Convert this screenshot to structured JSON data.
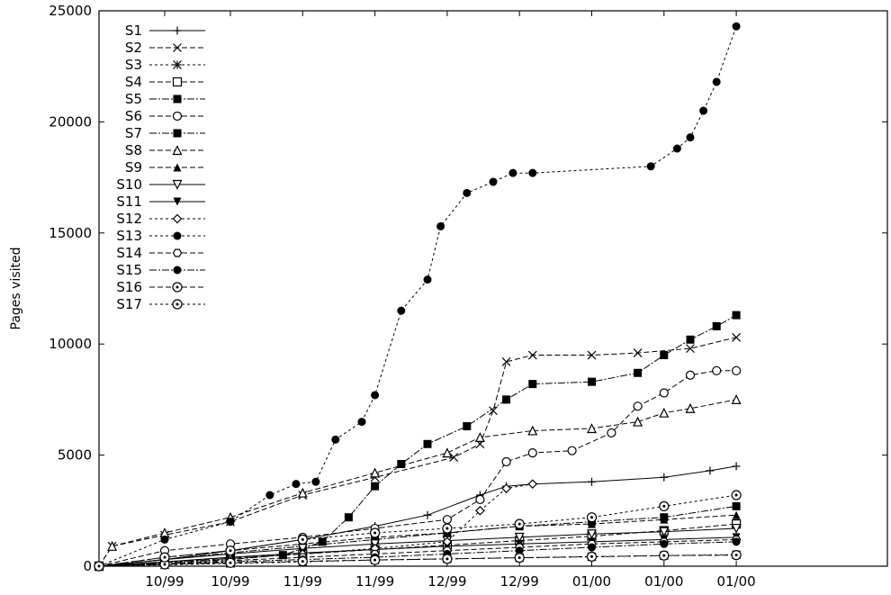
{
  "chart_data": {
    "type": "line",
    "title": "",
    "xlabel": "",
    "ylabel": "Pages visited",
    "ylim": [
      0,
      25000
    ],
    "yticks": [
      0,
      5000,
      10000,
      15000,
      20000,
      25000
    ],
    "xlim": [
      0,
      120
    ],
    "xticks": [
      {
        "x": 10,
        "label": "10/99"
      },
      {
        "x": 20,
        "label": "10/99"
      },
      {
        "x": 31,
        "label": "11/99"
      },
      {
        "x": 42,
        "label": "11/99"
      },
      {
        "x": 53,
        "label": "12/99"
      },
      {
        "x": 64,
        "label": "12/99"
      },
      {
        "x": 75,
        "label": "01/00"
      },
      {
        "x": 86,
        "label": "01/00"
      },
      {
        "x": 97,
        "label": "01/00"
      }
    ],
    "grid": false,
    "legend_position": "top-left",
    "series": [
      {
        "name": "S1",
        "marker": "plus",
        "dash": "",
        "points": [
          [
            0,
            0
          ],
          [
            10,
            300
          ],
          [
            20,
            700
          ],
          [
            31,
            1200
          ],
          [
            42,
            1800
          ],
          [
            50,
            2300
          ],
          [
            58,
            3200
          ],
          [
            62,
            3600
          ],
          [
            66,
            3700
          ],
          [
            75,
            3800
          ],
          [
            86,
            4000
          ],
          [
            93,
            4300
          ],
          [
            97,
            4500
          ]
        ]
      },
      {
        "name": "S2",
        "marker": "cross",
        "dash": "6,3",
        "points": [
          [
            0,
            0
          ],
          [
            2,
            900
          ],
          [
            10,
            1400
          ],
          [
            20,
            2000
          ],
          [
            31,
            3200
          ],
          [
            42,
            4000
          ],
          [
            54,
            4900
          ],
          [
            58,
            5500
          ],
          [
            60,
            7000
          ],
          [
            62,
            9200
          ],
          [
            66,
            9500
          ],
          [
            75,
            9500
          ],
          [
            82,
            9600
          ],
          [
            90,
            9800
          ],
          [
            97,
            10300
          ]
        ]
      },
      {
        "name": "S3",
        "marker": "asterisk",
        "dash": "3,3",
        "points": [
          [
            0,
            0
          ],
          [
            10,
            60
          ],
          [
            20,
            120
          ],
          [
            31,
            200
          ],
          [
            42,
            280
          ],
          [
            53,
            330
          ],
          [
            64,
            380
          ],
          [
            75,
            420
          ],
          [
            86,
            480
          ],
          [
            97,
            520
          ]
        ]
      },
      {
        "name": "S4",
        "marker": "square-open",
        "dash": "6,3",
        "points": [
          [
            0,
            0
          ],
          [
            10,
            200
          ],
          [
            20,
            350
          ],
          [
            31,
            550
          ],
          [
            42,
            750
          ],
          [
            53,
            950
          ],
          [
            64,
            1150
          ],
          [
            75,
            1350
          ],
          [
            86,
            1600
          ],
          [
            97,
            1900
          ]
        ]
      },
      {
        "name": "S5",
        "marker": "square-filled",
        "dash": "8,2,2,2",
        "points": [
          [
            0,
            0
          ],
          [
            20,
            300
          ],
          [
            28,
            500
          ],
          [
            34,
            1100
          ],
          [
            38,
            2200
          ],
          [
            42,
            3600
          ],
          [
            46,
            4600
          ],
          [
            50,
            5500
          ],
          [
            56,
            6300
          ],
          [
            62,
            7500
          ],
          [
            66,
            8200
          ],
          [
            75,
            8300
          ],
          [
            82,
            8700
          ],
          [
            86,
            9500
          ],
          [
            90,
            10200
          ],
          [
            94,
            10800
          ],
          [
            97,
            11300
          ]
        ]
      },
      {
        "name": "S6",
        "marker": "circle-open",
        "dash": "6,3",
        "points": [
          [
            0,
            0
          ],
          [
            10,
            700
          ],
          [
            20,
            1000
          ],
          [
            31,
            1300
          ],
          [
            42,
            1700
          ],
          [
            53,
            2100
          ],
          [
            58,
            3000
          ],
          [
            62,
            4700
          ],
          [
            66,
            5100
          ],
          [
            72,
            5200
          ],
          [
            78,
            6000
          ],
          [
            82,
            7200
          ],
          [
            86,
            7800
          ],
          [
            90,
            8600
          ],
          [
            94,
            8800
          ],
          [
            97,
            8800
          ]
        ]
      },
      {
        "name": "S7",
        "marker": "square-filled",
        "dash": "8,2,2,2",
        "points": [
          [
            0,
            0
          ],
          [
            10,
            300
          ],
          [
            20,
            600
          ],
          [
            31,
            900
          ],
          [
            42,
            1200
          ],
          [
            53,
            1500
          ],
          [
            64,
            1800
          ],
          [
            75,
            2000
          ],
          [
            86,
            2200
          ],
          [
            97,
            2700
          ]
        ]
      },
      {
        "name": "S8",
        "marker": "triangle-open",
        "dash": "6,3",
        "points": [
          [
            0,
            0
          ],
          [
            2,
            900
          ],
          [
            10,
            1500
          ],
          [
            20,
            2200
          ],
          [
            31,
            3300
          ],
          [
            42,
            4200
          ],
          [
            53,
            5100
          ],
          [
            58,
            5800
          ],
          [
            66,
            6100
          ],
          [
            75,
            6200
          ],
          [
            82,
            6500
          ],
          [
            86,
            6900
          ],
          [
            90,
            7100
          ],
          [
            97,
            7500
          ]
        ]
      },
      {
        "name": "S9",
        "marker": "triangle-filled",
        "dash": "6,3",
        "points": [
          [
            0,
            0
          ],
          [
            10,
            400
          ],
          [
            20,
            700
          ],
          [
            31,
            1000
          ],
          [
            42,
            1300
          ],
          [
            53,
            1500
          ],
          [
            64,
            1800
          ],
          [
            75,
            1900
          ],
          [
            86,
            2100
          ],
          [
            97,
            2300
          ]
        ]
      },
      {
        "name": "S10",
        "marker": "triangle-down-open",
        "dash": "",
        "points": [
          [
            0,
            0
          ],
          [
            10,
            300
          ],
          [
            20,
            550
          ],
          [
            31,
            800
          ],
          [
            42,
            1000
          ],
          [
            53,
            1150
          ],
          [
            64,
            1300
          ],
          [
            75,
            1450
          ],
          [
            86,
            1550
          ],
          [
            97,
            1700
          ]
        ]
      },
      {
        "name": "S11",
        "marker": "triangle-down-filled",
        "dash": "",
        "points": [
          [
            0,
            0
          ],
          [
            10,
            200
          ],
          [
            20,
            400
          ],
          [
            31,
            600
          ],
          [
            42,
            750
          ],
          [
            53,
            900
          ],
          [
            64,
            1000
          ],
          [
            75,
            1100
          ],
          [
            86,
            1200
          ],
          [
            97,
            1300
          ]
        ]
      },
      {
        "name": "S12",
        "marker": "diamond-open",
        "dash": "3,3",
        "points": [
          [
            0,
            0
          ],
          [
            10,
            150
          ],
          [
            20,
            350
          ],
          [
            31,
            550
          ],
          [
            42,
            800
          ],
          [
            53,
            1100
          ],
          [
            58,
            2500
          ],
          [
            62,
            3500
          ],
          [
            66,
            3700
          ]
        ]
      },
      {
        "name": "S13",
        "marker": "circle-filled",
        "dash": "3,3",
        "points": [
          [
            0,
            0
          ],
          [
            10,
            1200
          ],
          [
            20,
            2000
          ],
          [
            26,
            3200
          ],
          [
            30,
            3700
          ],
          [
            33,
            3800
          ],
          [
            36,
            5700
          ],
          [
            40,
            6500
          ],
          [
            42,
            7700
          ],
          [
            46,
            11500
          ],
          [
            50,
            12900
          ],
          [
            52,
            15300
          ],
          [
            56,
            16800
          ],
          [
            60,
            17300
          ],
          [
            63,
            17700
          ],
          [
            66,
            17700
          ],
          [
            84,
            18000
          ],
          [
            88,
            18800
          ],
          [
            90,
            19300
          ],
          [
            92,
            20500
          ],
          [
            94,
            21800
          ],
          [
            97,
            24300
          ]
        ]
      },
      {
        "name": "S14",
        "marker": "hexagon-open",
        "dash": "6,3",
        "points": [
          [
            0,
            0
          ],
          [
            10,
            100
          ],
          [
            20,
            250
          ],
          [
            31,
            400
          ],
          [
            42,
            550
          ],
          [
            53,
            700
          ],
          [
            64,
            850
          ],
          [
            75,
            1000
          ],
          [
            86,
            1100
          ],
          [
            97,
            1200
          ]
        ]
      },
      {
        "name": "S15",
        "marker": "circle-filled",
        "dash": "8,2,2,2",
        "points": [
          [
            0,
            0
          ],
          [
            10,
            100
          ],
          [
            20,
            200
          ],
          [
            31,
            300
          ],
          [
            42,
            400
          ],
          [
            53,
            550
          ],
          [
            64,
            700
          ],
          [
            75,
            850
          ],
          [
            86,
            1000
          ],
          [
            97,
            1100
          ]
        ]
      },
      {
        "name": "S16",
        "marker": "circle-dot",
        "dash": "6,3",
        "points": [
          [
            0,
            0
          ],
          [
            10,
            80
          ],
          [
            20,
            150
          ],
          [
            31,
            220
          ],
          [
            42,
            280
          ],
          [
            53,
            330
          ],
          [
            64,
            380
          ],
          [
            75,
            430
          ],
          [
            86,
            480
          ],
          [
            97,
            500
          ]
        ]
      },
      {
        "name": "S17",
        "marker": "circle-dot",
        "dash": "3,3",
        "points": [
          [
            0,
            0
          ],
          [
            10,
            400
          ],
          [
            20,
            700
          ],
          [
            31,
            1200
          ],
          [
            42,
            1500
          ],
          [
            53,
            1700
          ],
          [
            64,
            1900
          ],
          [
            75,
            2200
          ],
          [
            86,
            2700
          ],
          [
            97,
            3200
          ]
        ]
      }
    ]
  }
}
